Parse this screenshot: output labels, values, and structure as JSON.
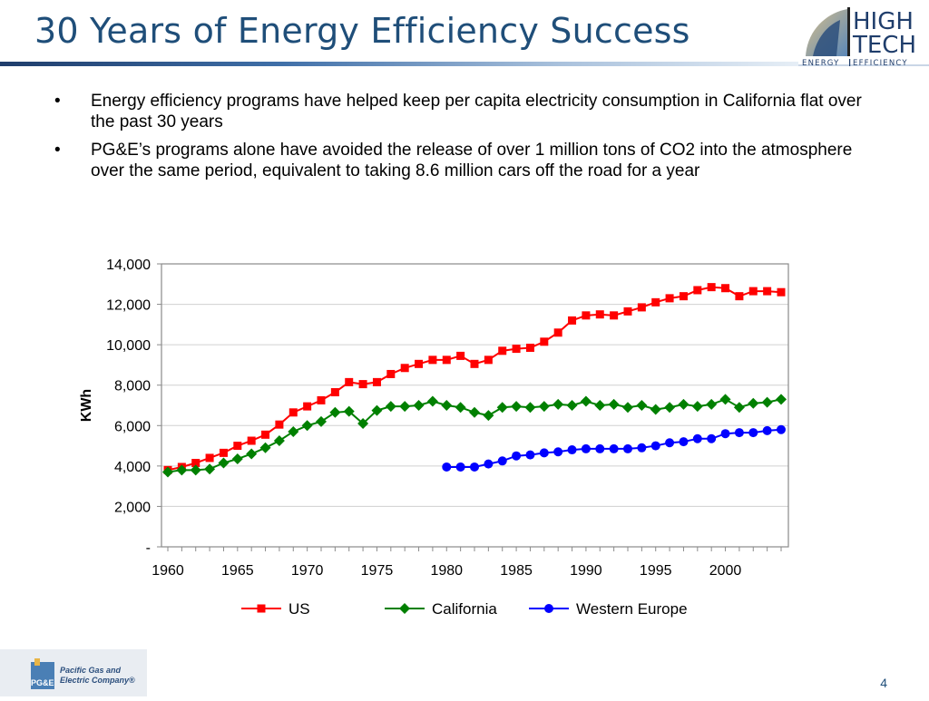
{
  "slide": {
    "title": "30 Years of Energy Efficiency Success",
    "bullets": [
      "Energy efficiency programs have helped keep per capita electricity consumption in California flat over the past 30 years",
      "PG&E’s programs alone have avoided the release of over 1 million tons of CO2 into the atmosphere over the same period, equivalent to taking 8.6 million cars off the road for a year"
    ],
    "bullet_glyph": "•",
    "page_number": "4"
  },
  "logos": {
    "hightech": {
      "line1": "HIGH",
      "line2": "TECH",
      "tagline_left": "ENERGY",
      "tagline_right": "EFFICIENCY"
    },
    "pge": {
      "mark": "PG&E",
      "name_line1": "Pacific Gas and",
      "name_line2": "Electric Company®"
    }
  },
  "colors": {
    "title": "#1f4e79",
    "us": "#ff0000",
    "california": "#008000",
    "western_europe": "#0000ff"
  },
  "chart_data": {
    "type": "line",
    "ylabel": "KWh",
    "xlabel": "",
    "ylim": [
      0,
      14000
    ],
    "yticks": [
      0,
      2000,
      4000,
      6000,
      8000,
      10000,
      12000,
      14000
    ],
    "ytick_labels": [
      "-",
      "2,000",
      "4,000",
      "6,000",
      "8,000",
      "10,000",
      "12,000",
      "14,000"
    ],
    "xlim": [
      1960,
      2004
    ],
    "xticks": [
      1960,
      1965,
      1970,
      1975,
      1980,
      1985,
      1990,
      1995,
      2000
    ],
    "grid": true,
    "legend": "bottom",
    "series": [
      {
        "name": "US",
        "marker": "square",
        "color": "#ff0000",
        "x": [
          1960,
          1961,
          1962,
          1963,
          1964,
          1965,
          1966,
          1967,
          1968,
          1969,
          1970,
          1971,
          1972,
          1973,
          1974,
          1975,
          1976,
          1977,
          1978,
          1979,
          1980,
          1981,
          1982,
          1983,
          1984,
          1985,
          1986,
          1987,
          1988,
          1989,
          1990,
          1991,
          1992,
          1993,
          1994,
          1995,
          1996,
          1997,
          1998,
          1999,
          2000,
          2001,
          2002,
          2003,
          2004
        ],
        "values": [
          3800,
          3950,
          4150,
          4400,
          4650,
          5000,
          5250,
          5550,
          6050,
          6650,
          6950,
          7250,
          7650,
          8150,
          8050,
          8150,
          8550,
          8850,
          9050,
          9250,
          9250,
          9450,
          9050,
          9250,
          9700,
          9800,
          9850,
          10150,
          10600,
          11200,
          11450,
          11500,
          11450,
          11650,
          11850,
          12100,
          12300,
          12400,
          12700,
          12850,
          12800,
          12400,
          12650,
          12650,
          12600
        ]
      },
      {
        "name": "California",
        "marker": "diamond",
        "color": "#008000",
        "x": [
          1960,
          1961,
          1962,
          1963,
          1964,
          1965,
          1966,
          1967,
          1968,
          1969,
          1970,
          1971,
          1972,
          1973,
          1974,
          1975,
          1976,
          1977,
          1978,
          1979,
          1980,
          1981,
          1982,
          1983,
          1984,
          1985,
          1986,
          1987,
          1988,
          1989,
          1990,
          1991,
          1992,
          1993,
          1994,
          1995,
          1996,
          1997,
          1998,
          1999,
          2000,
          2001,
          2002,
          2003,
          2004
        ],
        "values": [
          3700,
          3800,
          3800,
          3850,
          4150,
          4350,
          4600,
          4900,
          5250,
          5700,
          6000,
          6200,
          6650,
          6700,
          6100,
          6750,
          6950,
          6950,
          7000,
          7200,
          7000,
          6900,
          6650,
          6500,
          6900,
          6950,
          6900,
          6950,
          7050,
          7000,
          7200,
          7000,
          7050,
          6900,
          7000,
          6800,
          6900,
          7050,
          6950,
          7050,
          7300,
          6900,
          7100,
          7150,
          7300
        ]
      },
      {
        "name": "Western Europe",
        "marker": "circle",
        "color": "#0000ff",
        "x": [
          1980,
          1981,
          1982,
          1983,
          1984,
          1985,
          1986,
          1987,
          1988,
          1989,
          1990,
          1991,
          1992,
          1993,
          1994,
          1995,
          1996,
          1997,
          1998,
          1999,
          2000,
          2001,
          2002,
          2003,
          2004
        ],
        "values": [
          3950,
          3950,
          3950,
          4100,
          4250,
          4500,
          4550,
          4650,
          4700,
          4800,
          4850,
          4850,
          4850,
          4850,
          4900,
          5000,
          5150,
          5200,
          5350,
          5350,
          5600,
          5650,
          5650,
          5750,
          5800
        ]
      }
    ]
  }
}
